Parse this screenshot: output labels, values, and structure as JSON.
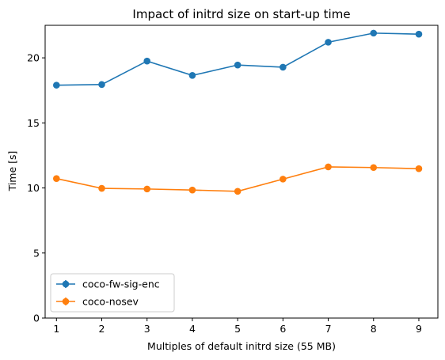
{
  "chart_data": {
    "type": "line",
    "title": "Impact of initrd size on start-up time",
    "xlabel": "Multiples of default initrd size (55 MB)",
    "ylabel": "Time [s]",
    "x": [
      1,
      2,
      3,
      4,
      5,
      6,
      7,
      8,
      9
    ],
    "xlim": [
      0.75,
      9.42
    ],
    "ylim": [
      0,
      22.5
    ],
    "xticks": [
      1,
      2,
      3,
      4,
      5,
      6,
      7,
      8,
      9
    ],
    "yticks": [
      0,
      5,
      10,
      15,
      20
    ],
    "grid": false,
    "legend_position": "lower-left",
    "series": [
      {
        "name": "coco-fw-sig-enc",
        "color": "#1f77b4",
        "values": [
          17.9,
          17.95,
          19.75,
          18.65,
          19.45,
          19.28,
          21.2,
          21.9,
          21.82
        ]
      },
      {
        "name": "coco-nosev",
        "color": "#ff7f0e",
        "values": [
          10.72,
          9.97,
          9.92,
          9.84,
          9.74,
          10.68,
          11.62,
          11.57,
          11.48
        ]
      }
    ]
  }
}
